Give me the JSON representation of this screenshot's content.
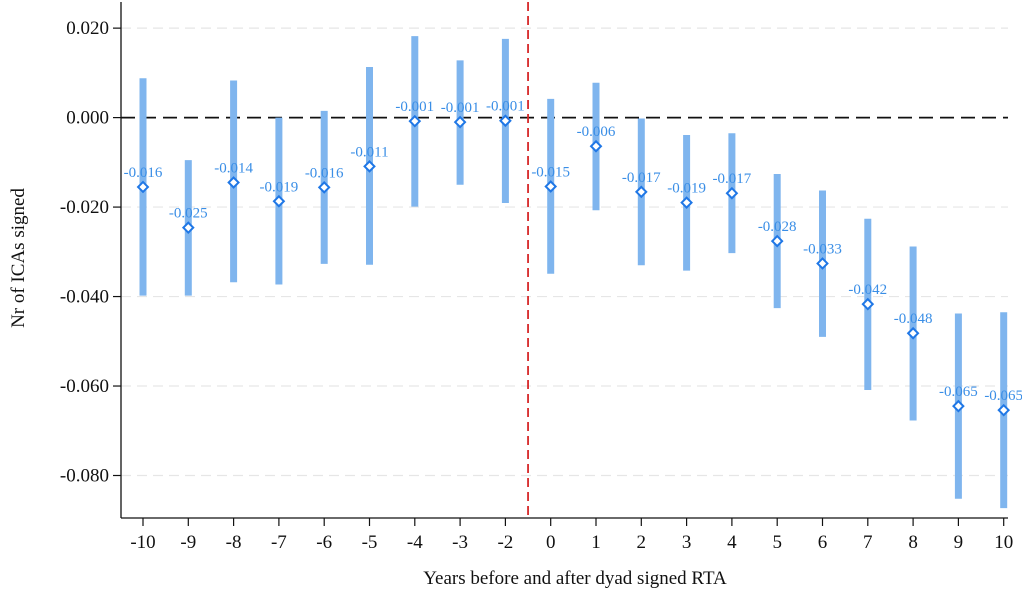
{
  "chart_data": {
    "type": "scatter",
    "title": "",
    "xlabel": "Years before and after dyad signed RTA",
    "ylabel": "Nr of ICAs signed",
    "x_ticks": [
      "-10",
      "-9",
      "-8",
      "-7",
      "-6",
      "-5",
      "-4",
      "-3",
      "-2",
      "0",
      "1",
      "2",
      "3",
      "4",
      "5",
      "6",
      "7",
      "8",
      "9",
      "10"
    ],
    "y_ticks": [
      {
        "value": 0.02,
        "label": "0.020"
      },
      {
        "value": 0.0,
        "label": "0.000"
      },
      {
        "value": -0.02,
        "label": "-0.020"
      },
      {
        "value": -0.04,
        "label": "-0.040"
      },
      {
        "value": -0.06,
        "label": "-0.060"
      },
      {
        "value": -0.08,
        "label": "-0.080"
      }
    ],
    "ylim": [
      -0.0895,
      0.0245
    ],
    "grid": true,
    "legend": "none",
    "reference_lines": {
      "horizontal_zero": {
        "value": 0.0,
        "style": "dashed",
        "color": "#111111"
      },
      "vertical_event": {
        "between": [
          "-2",
          "0"
        ],
        "style": "dashed",
        "color": "#d62728"
      }
    },
    "colors": {
      "ci_bar": "#7fb5ee",
      "marker": "#1f77e6",
      "label": "#3a8ee6",
      "grid": "#e6e6e6"
    },
    "points": [
      {
        "x": "-10",
        "estimate": -0.0155,
        "ci_low": -0.0398,
        "ci_high": 0.0088,
        "label": "-0.016"
      },
      {
        "x": "-9",
        "estimate": -0.0246,
        "ci_low": -0.0398,
        "ci_high": -0.0095,
        "label": "-0.025"
      },
      {
        "x": "-8",
        "estimate": -0.0145,
        "ci_low": -0.0368,
        "ci_high": 0.0083,
        "label": "-0.014"
      },
      {
        "x": "-7",
        "estimate": -0.0187,
        "ci_low": -0.0373,
        "ci_high": 0.0,
        "label": "-0.019"
      },
      {
        "x": "-6",
        "estimate": -0.0156,
        "ci_low": -0.0327,
        "ci_high": 0.0015,
        "label": "-0.016"
      },
      {
        "x": "-5",
        "estimate": -0.0109,
        "ci_low": -0.0329,
        "ci_high": 0.0113,
        "label": "-0.011"
      },
      {
        "x": "-4",
        "estimate": -0.0008,
        "ci_low": -0.0199,
        "ci_high": 0.0182,
        "label": "-0.001"
      },
      {
        "x": "-3",
        "estimate": -0.001,
        "ci_low": -0.015,
        "ci_high": 0.0128,
        "label": "-0.001"
      },
      {
        "x": "-2",
        "estimate": -0.0007,
        "ci_low": -0.0191,
        "ci_high": 0.0176,
        "label": "-0.001"
      },
      {
        "x": "0",
        "estimate": -0.0154,
        "ci_low": -0.0349,
        "ci_high": 0.0042,
        "label": "-0.015"
      },
      {
        "x": "1",
        "estimate": -0.0064,
        "ci_low": -0.0207,
        "ci_high": 0.0078,
        "label": "-0.006"
      },
      {
        "x": "2",
        "estimate": -0.0166,
        "ci_low": -0.033,
        "ci_high": -0.0002,
        "label": "-0.017"
      },
      {
        "x": "3",
        "estimate": -0.019,
        "ci_low": -0.0342,
        "ci_high": -0.0039,
        "label": "-0.019"
      },
      {
        "x": "4",
        "estimate": -0.0169,
        "ci_low": -0.0303,
        "ci_high": -0.0035,
        "label": "-0.017"
      },
      {
        "x": "5",
        "estimate": -0.0276,
        "ci_low": -0.0426,
        "ci_high": -0.0126,
        "label": "-0.028"
      },
      {
        "x": "6",
        "estimate": -0.0326,
        "ci_low": -0.049,
        "ci_high": -0.0163,
        "label": "-0.033"
      },
      {
        "x": "7",
        "estimate": -0.0417,
        "ci_low": -0.0609,
        "ci_high": -0.0226,
        "label": "-0.042"
      },
      {
        "x": "8",
        "estimate": -0.0482,
        "ci_low": -0.0677,
        "ci_high": -0.0288,
        "label": "-0.048"
      },
      {
        "x": "9",
        "estimate": -0.0645,
        "ci_low": -0.0852,
        "ci_high": -0.0438,
        "label": "-0.065"
      },
      {
        "x": "10",
        "estimate": -0.0654,
        "ci_low": -0.0873,
        "ci_high": -0.0435,
        "label": "-0.065"
      }
    ]
  }
}
